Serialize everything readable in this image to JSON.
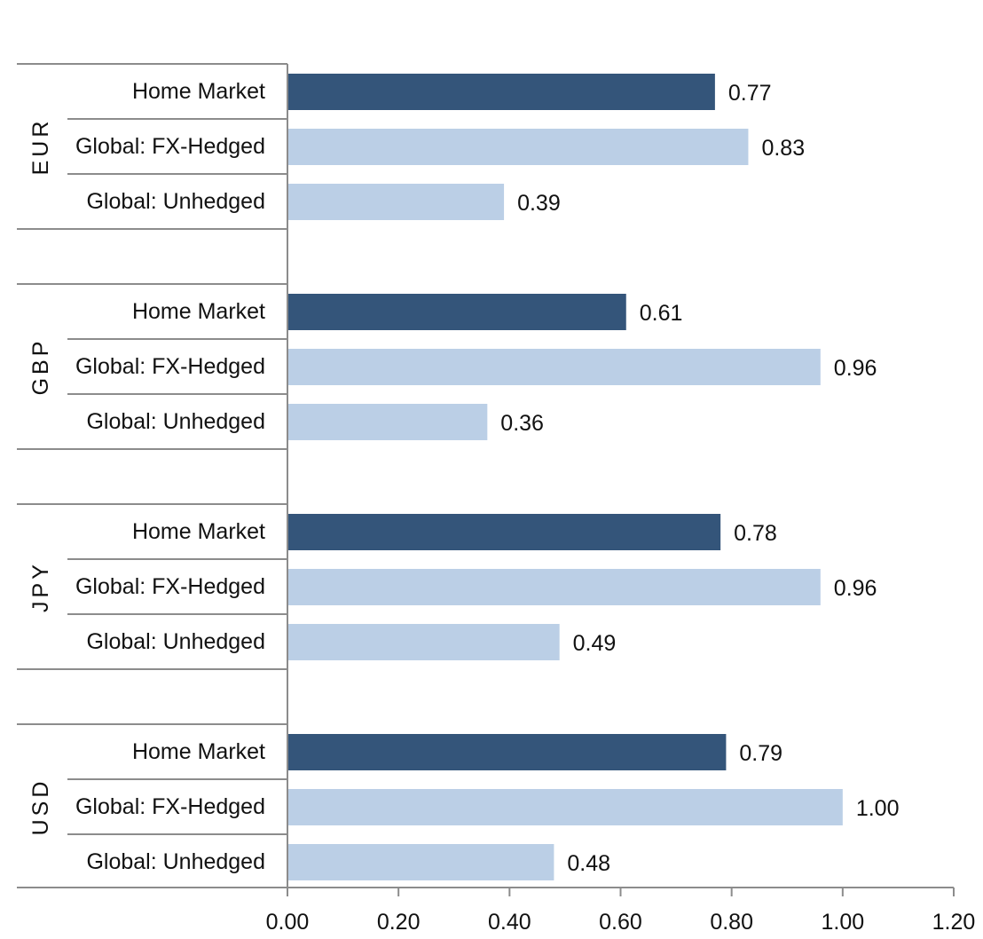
{
  "chart_data": {
    "type": "bar",
    "orientation": "horizontal",
    "title": "",
    "xlabel": "",
    "ylabel": "",
    "xlim": [
      0,
      1.2
    ],
    "xticks": [
      "0.00",
      "0.20",
      "0.40",
      "0.60",
      "0.80",
      "1.00",
      "1.20"
    ],
    "grid": false,
    "legend": "none",
    "colors": {
      "Home Market": "#34557A",
      "Global: FX-Hedged": "#BBCFE6",
      "Global: Unhedged": "#BBCFE6"
    },
    "groups": [
      {
        "name": "EUR",
        "bars": [
          {
            "label": "Home Market",
            "value": 0.77,
            "value_label": "0.77"
          },
          {
            "label": "Global: FX-Hedged",
            "value": 0.83,
            "value_label": "0.83"
          },
          {
            "label": "Global: Unhedged",
            "value": 0.39,
            "value_label": "0.39"
          }
        ]
      },
      {
        "name": "GBP",
        "bars": [
          {
            "label": "Home Market",
            "value": 0.61,
            "value_label": "0.61"
          },
          {
            "label": "Global: FX-Hedged",
            "value": 0.96,
            "value_label": "0.96"
          },
          {
            "label": "Global: Unhedged",
            "value": 0.36,
            "value_label": "0.36"
          }
        ]
      },
      {
        "name": "JPY",
        "bars": [
          {
            "label": "Home Market",
            "value": 0.78,
            "value_label": "0.78"
          },
          {
            "label": "Global: FX-Hedged",
            "value": 0.96,
            "value_label": "0.96"
          },
          {
            "label": "Global: Unhedged",
            "value": 0.49,
            "value_label": "0.49"
          }
        ]
      },
      {
        "name": "USD",
        "bars": [
          {
            "label": "Home Market",
            "value": 0.79,
            "value_label": "0.79"
          },
          {
            "label": "Global: FX-Hedged",
            "value": 1.0,
            "value_label": "1.00"
          },
          {
            "label": "Global: Unhedged",
            "value": 0.48,
            "value_label": "0.48"
          }
        ]
      }
    ]
  }
}
